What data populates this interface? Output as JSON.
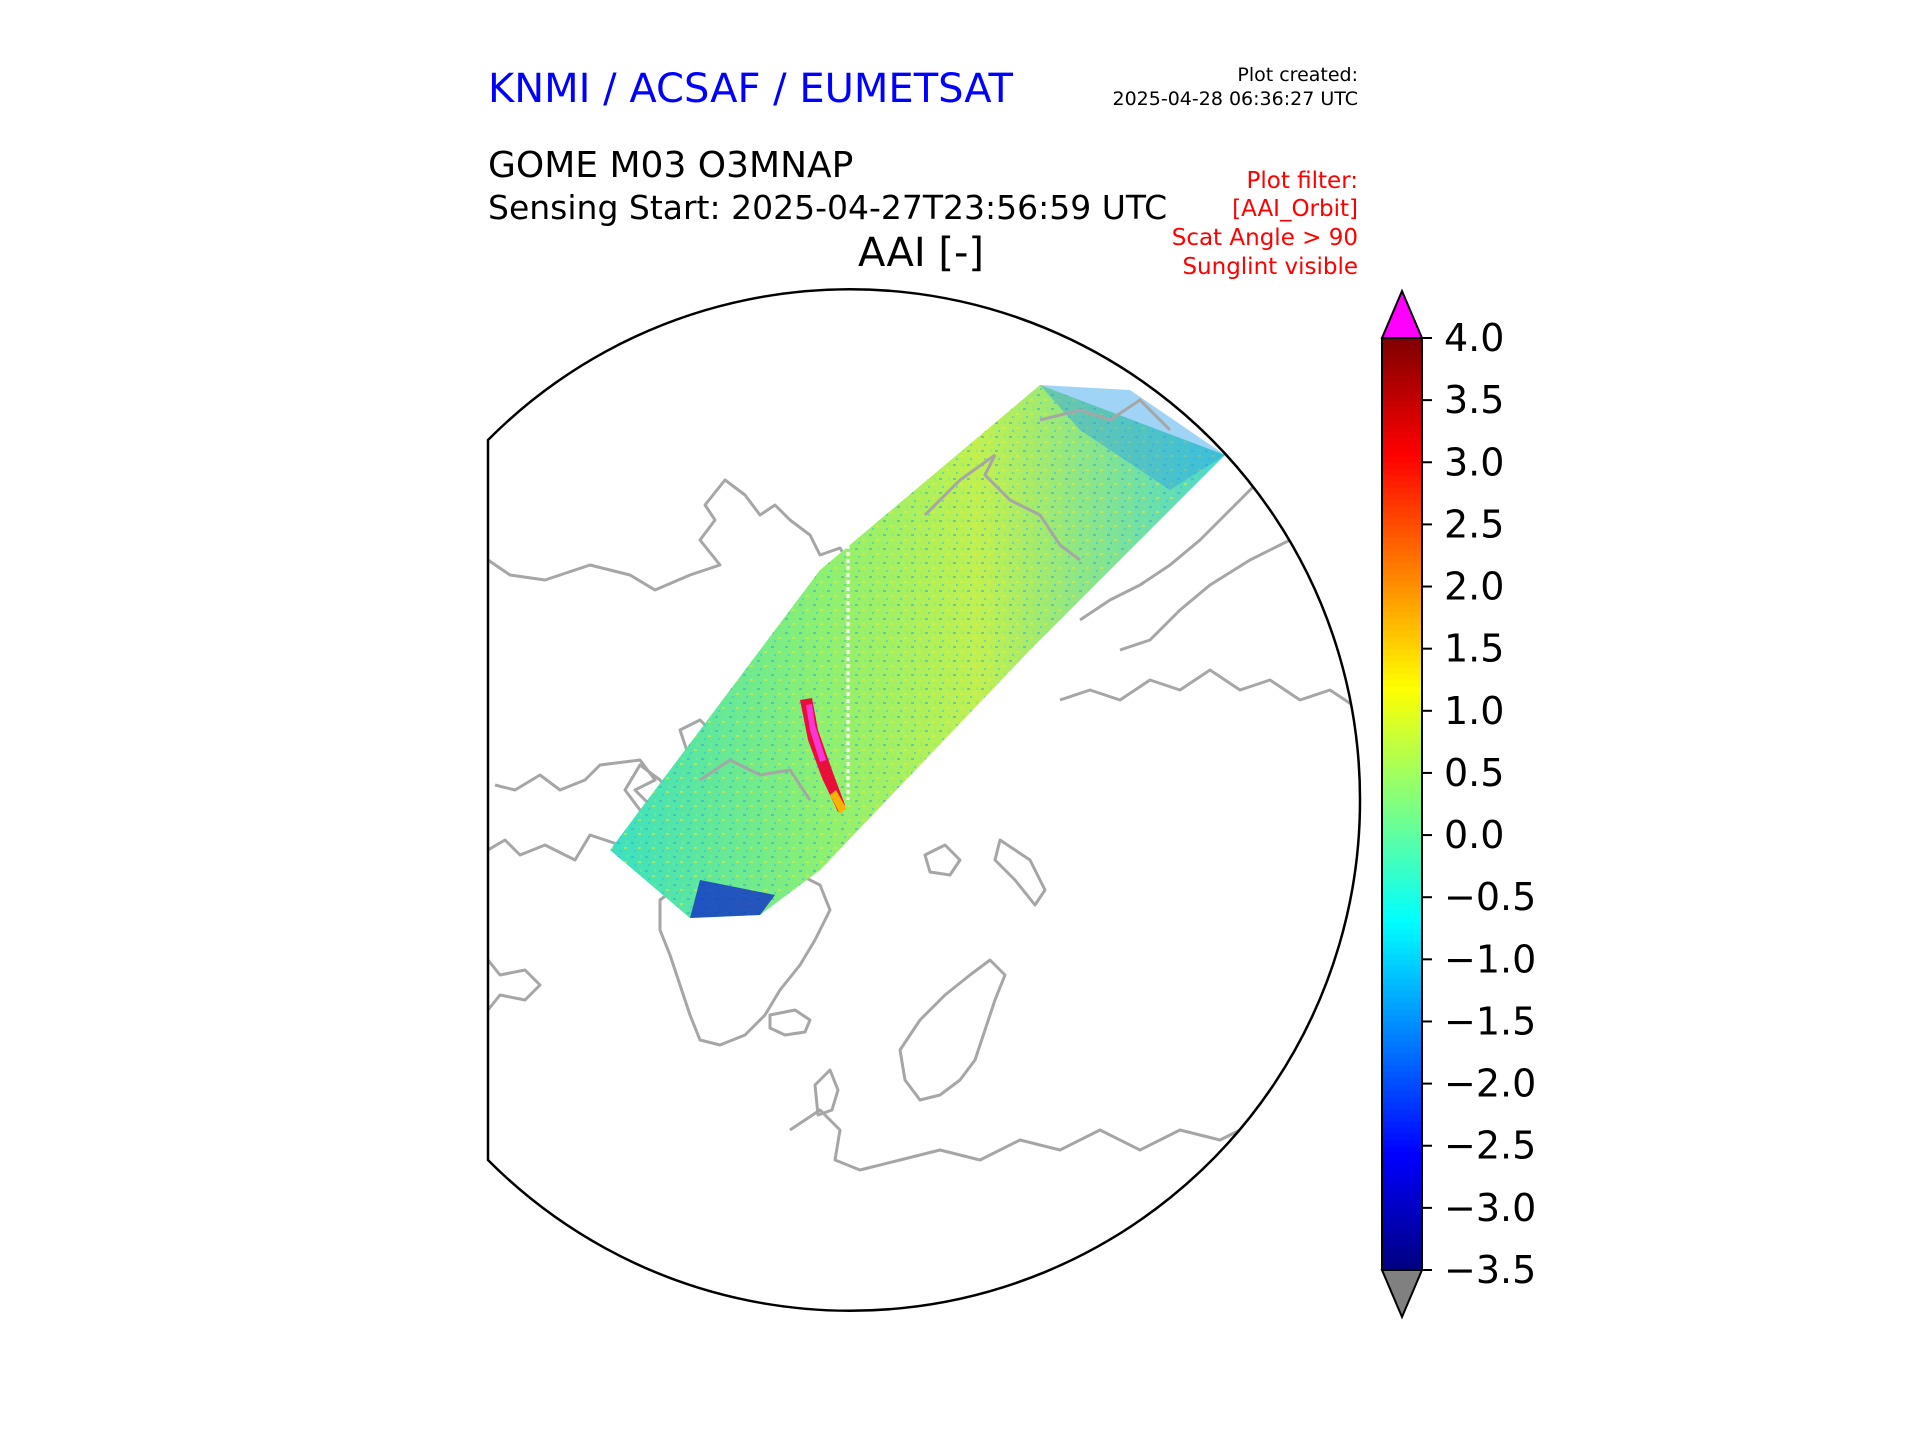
{
  "header": {
    "agency": "KNMI / ACSAF / EUMETSAT",
    "agency_color": "#0000ff",
    "plot_created_label": "Plot created:",
    "plot_created_time": "2025-04-28 06:36:27 UTC",
    "product": "GOME M03 O3MNAP",
    "sensing_start": "Sensing Start: 2025-04-27T23:56:59 UTC",
    "variable_title": "AAI [-]"
  },
  "filters": {
    "color": "#ff0000",
    "lines": [
      "Plot filter:",
      "[AAI_Orbit]",
      "Scat Angle > 90",
      "Sunglint visible"
    ]
  },
  "map": {
    "projection": "north-polar-stereographic",
    "coastline_color": "#a6a6a6",
    "swath_icon": "aai-swath-strip"
  },
  "colorbar": {
    "cmap": "jet",
    "min": -3.5,
    "max": 4.0,
    "ticks": [
      "4.0",
      "3.5",
      "3.0",
      "2.5",
      "2.0",
      "1.5",
      "1.0",
      "0.5",
      "0.0",
      "−0.5",
      "−1.0",
      "−1.5",
      "−2.0",
      "−2.5",
      "−3.0",
      "−3.5"
    ],
    "tick_values": [
      4.0,
      3.5,
      3.0,
      2.5,
      2.0,
      1.5,
      1.0,
      0.5,
      0.0,
      -0.5,
      -1.0,
      -1.5,
      -2.0,
      -2.5,
      -3.0,
      -3.5
    ],
    "over_color": "#ff00ff",
    "under_color": "#808080"
  }
}
